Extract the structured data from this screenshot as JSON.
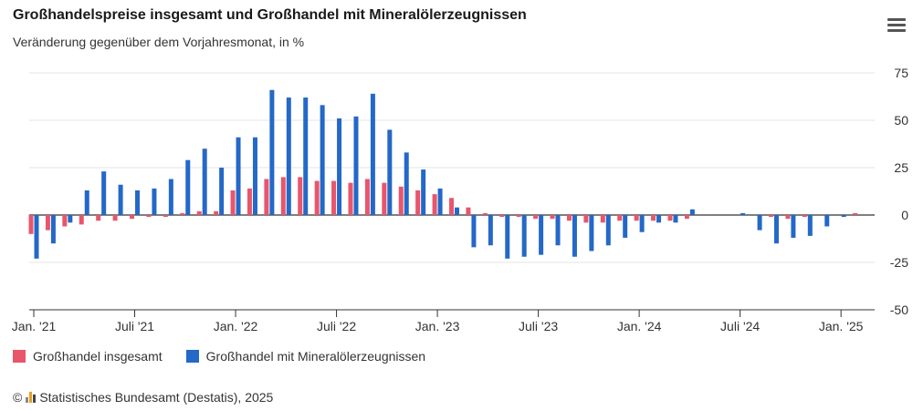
{
  "header": {
    "title": "Großhandelspreise insgesamt und Großhandel mit Mineralölerzeugnissen",
    "subtitle": "Veränderung gegenüber dem Vorjahresmonat, in %",
    "menu_icon": "hamburger-menu-icon"
  },
  "footer": {
    "copyright_symbol": "©",
    "source": "Statistisches Bundesamt (Destatis), 2025",
    "logo_icon": "destatis-bars-icon"
  },
  "colors": {
    "insgesamt": "#e8566c",
    "mineraloel": "#2468c8",
    "grid": "#e6e6e6",
    "axis": "#333333"
  },
  "chart_data": {
    "type": "bar",
    "categories": [
      "2021-01",
      "2021-02",
      "2021-03",
      "2021-04",
      "2021-05",
      "2021-06",
      "2021-07",
      "2021-08",
      "2021-09",
      "2021-10",
      "2021-11",
      "2021-12",
      "2022-01",
      "2022-02",
      "2022-03",
      "2022-04",
      "2022-05",
      "2022-06",
      "2022-07",
      "2022-08",
      "2022-09",
      "2022-10",
      "2022-11",
      "2022-12",
      "2023-01",
      "2023-02",
      "2023-03",
      "2023-04",
      "2023-05",
      "2023-06",
      "2023-07",
      "2023-08",
      "2023-09",
      "2023-10",
      "2023-11",
      "2023-12",
      "2024-01",
      "2024-02",
      "2024-03",
      "2024-04",
      "2024-05",
      "2024-06",
      "2024-07",
      "2024-08",
      "2024-09",
      "2024-10",
      "2024-11",
      "2024-12",
      "2025-01",
      "2025-02"
    ],
    "tick_labels": [
      {
        "index": 0,
        "label": "Jan. '21"
      },
      {
        "index": 6,
        "label": "Juli '21"
      },
      {
        "index": 12,
        "label": "Jan. '22"
      },
      {
        "index": 18,
        "label": "Juli '22"
      },
      {
        "index": 24,
        "label": "Jan. '23"
      },
      {
        "index": 30,
        "label": "Juli '23"
      },
      {
        "index": 36,
        "label": "Jan. '24"
      },
      {
        "index": 42,
        "label": "Juli '24"
      },
      {
        "index": 48,
        "label": "Jan. '25"
      }
    ],
    "series": [
      {
        "name": "Großhandel insgesamt",
        "values": [
          -10,
          -8,
          -6,
          -5,
          -3,
          -3,
          -2,
          -1,
          -1,
          1,
          2,
          2,
          13,
          14,
          19,
          20,
          20,
          18,
          18,
          17,
          19,
          17,
          15,
          13,
          11,
          9,
          4,
          1,
          -1,
          -1,
          -2,
          -2,
          -3,
          -4,
          -4,
          -3,
          -3,
          -3,
          -3,
          -2,
          0,
          0,
          0,
          0,
          -1,
          -2,
          -1,
          0,
          0,
          1
        ]
      },
      {
        "name": "Großhandel mit Mineralölerzeugnissen",
        "values": [
          -23,
          -15,
          -4,
          13,
          23,
          16,
          13,
          14,
          19,
          29,
          35,
          25,
          41,
          41,
          66,
          62,
          62,
          58,
          51,
          52,
          64,
          45,
          33,
          24,
          14,
          4,
          -17,
          -16,
          -23,
          -22,
          -21,
          -16,
          -22,
          -19,
          -16,
          -12,
          -9,
          -4,
          -4,
          3,
          0,
          0,
          1,
          -8,
          -15,
          -12,
          -11,
          -6,
          -1,
          0
        ]
      }
    ],
    "y_ticks": [
      75,
      50,
      25,
      0,
      -25,
      -50
    ],
    "ylim": [
      -50,
      75
    ],
    "xlabel": "",
    "ylabel": "",
    "grid": true,
    "legend_position": "bottom-left"
  }
}
